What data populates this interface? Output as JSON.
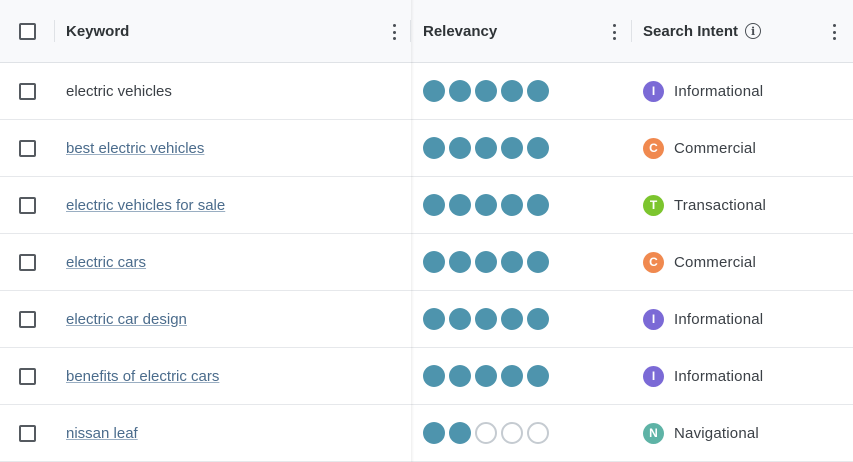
{
  "header": {
    "keyword_label": "Keyword",
    "relevancy_label": "Relevancy",
    "intent_label": "Search Intent",
    "info_icon_glyph": "i"
  },
  "colors": {
    "dot_on": "#4e94ad",
    "informational": "#7b6ad6",
    "commercial": "#f0894f",
    "transactional": "#7cc52e",
    "navigational": "#5eb3a6"
  },
  "rows": [
    {
      "keyword": "electric vehicles",
      "is_link": false,
      "relevancy": 5,
      "intent_letter": "I",
      "intent": "Informational",
      "intent_color": "#7b6ad6"
    },
    {
      "keyword": "best electric vehicles",
      "is_link": true,
      "relevancy": 5,
      "intent_letter": "C",
      "intent": "Commercial",
      "intent_color": "#f0894f"
    },
    {
      "keyword": "electric vehicles for sale",
      "is_link": true,
      "relevancy": 5,
      "intent_letter": "T",
      "intent": "Transactional",
      "intent_color": "#7cc52e"
    },
    {
      "keyword": "electric cars",
      "is_link": true,
      "relevancy": 5,
      "intent_letter": "C",
      "intent": "Commercial",
      "intent_color": "#f0894f"
    },
    {
      "keyword": "electric car design",
      "is_link": true,
      "relevancy": 5,
      "intent_letter": "I",
      "intent": "Informational",
      "intent_color": "#7b6ad6"
    },
    {
      "keyword": "benefits of electric cars",
      "is_link": true,
      "relevancy": 5,
      "intent_letter": "I",
      "intent": "Informational",
      "intent_color": "#7b6ad6"
    },
    {
      "keyword": "nissan leaf",
      "is_link": true,
      "relevancy": 2,
      "intent_letter": "N",
      "intent": "Navigational",
      "intent_color": "#5eb3a6"
    }
  ]
}
